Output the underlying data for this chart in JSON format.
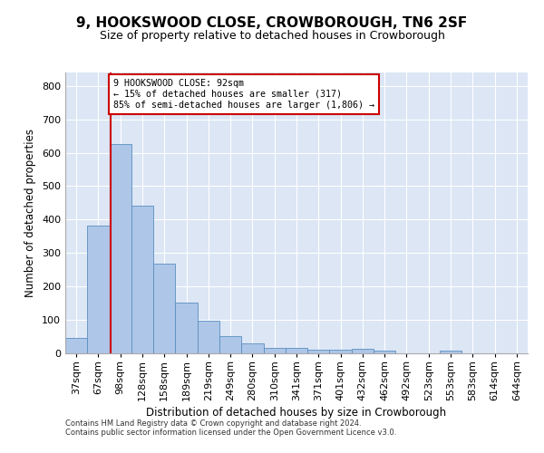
{
  "title": "9, HOOKSWOOD CLOSE, CROWBOROUGH, TN6 2SF",
  "subtitle": "Size of property relative to detached houses in Crowborough",
  "xlabel": "Distribution of detached houses by size in Crowborough",
  "ylabel": "Number of detached properties",
  "footnote1": "Contains HM Land Registry data © Crown copyright and database right 2024.",
  "footnote2": "Contains public sector information licensed under the Open Government Licence v3.0.",
  "annotation_line1": "9 HOOKSWOOD CLOSE: 92sqm",
  "annotation_line2": "← 15% of detached houses are smaller (317)",
  "annotation_line3": "85% of semi-detached houses are larger (1,806) →",
  "bar_color": "#aec6e8",
  "bar_edge_color": "#5a8fc0",
  "line_color": "#cc0000",
  "box_edge_color": "#cc0000",
  "background_color": "#dce6f5",
  "categories": [
    "37sqm",
    "67sqm",
    "98sqm",
    "128sqm",
    "158sqm",
    "189sqm",
    "219sqm",
    "249sqm",
    "280sqm",
    "310sqm",
    "341sqm",
    "371sqm",
    "401sqm",
    "432sqm",
    "462sqm",
    "492sqm",
    "523sqm",
    "553sqm",
    "583sqm",
    "614sqm",
    "644sqm"
  ],
  "bar_values": [
    47,
    383,
    625,
    443,
    268,
    153,
    98,
    52,
    29,
    17,
    17,
    11,
    11,
    13,
    7,
    0,
    0,
    8,
    0,
    0,
    0
  ],
  "ylim": [
    0,
    840
  ],
  "yticks": [
    0,
    100,
    200,
    300,
    400,
    500,
    600,
    700,
    800
  ],
  "property_line_x": 1.55,
  "title_fontsize": 11,
  "subtitle_fontsize": 9,
  "figsize": [
    6.0,
    5.0
  ],
  "dpi": 100
}
